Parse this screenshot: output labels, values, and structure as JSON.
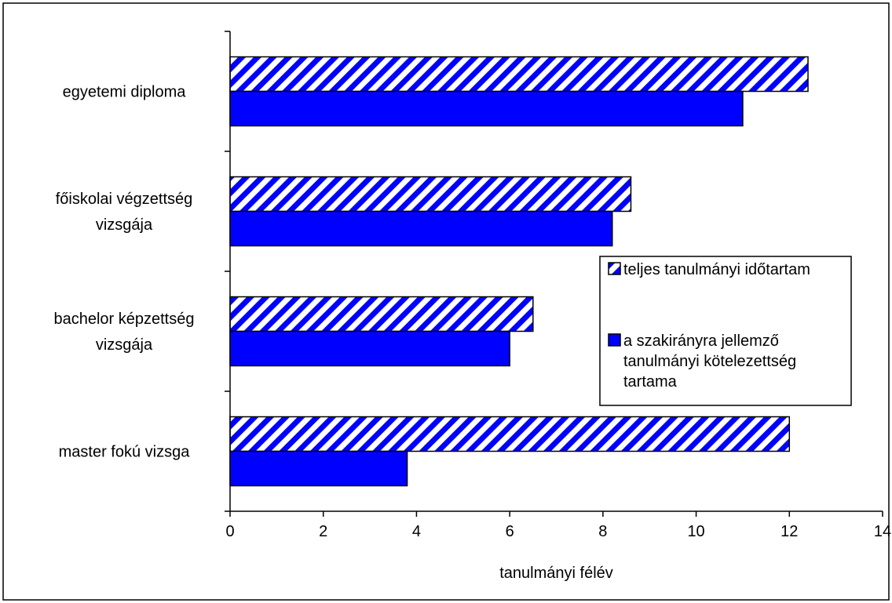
{
  "chart_data": {
    "type": "bar",
    "orientation": "horizontal",
    "categories": [
      [
        "egyetemi diploma"
      ],
      [
        "főiskolai végzettség",
        "vizsgája"
      ],
      [
        "bachelor képzettség",
        "vizsgája"
      ],
      [
        "master fokú vizsga"
      ]
    ],
    "series": [
      {
        "name": "teljes tanulmányi időtartam",
        "values": [
          12.4,
          8.6,
          6.5,
          12.0
        ],
        "fill": "hatched",
        "color": "#0000ff"
      },
      {
        "name_lines": [
          "a szakirányra jellemző",
          "tanulmányi kötelezettség",
          "tartama"
        ],
        "values": [
          11.0,
          8.2,
          6.0,
          3.8
        ],
        "fill": "solid",
        "color": "#0000ff"
      }
    ],
    "xlabel": "tanulmányi félév",
    "ylabel": "",
    "xlim": [
      0,
      14
    ],
    "xticks": [
      "0",
      "2",
      "4",
      "6",
      "8",
      "10",
      "12",
      "14"
    ],
    "grid": false,
    "legend": "right"
  }
}
